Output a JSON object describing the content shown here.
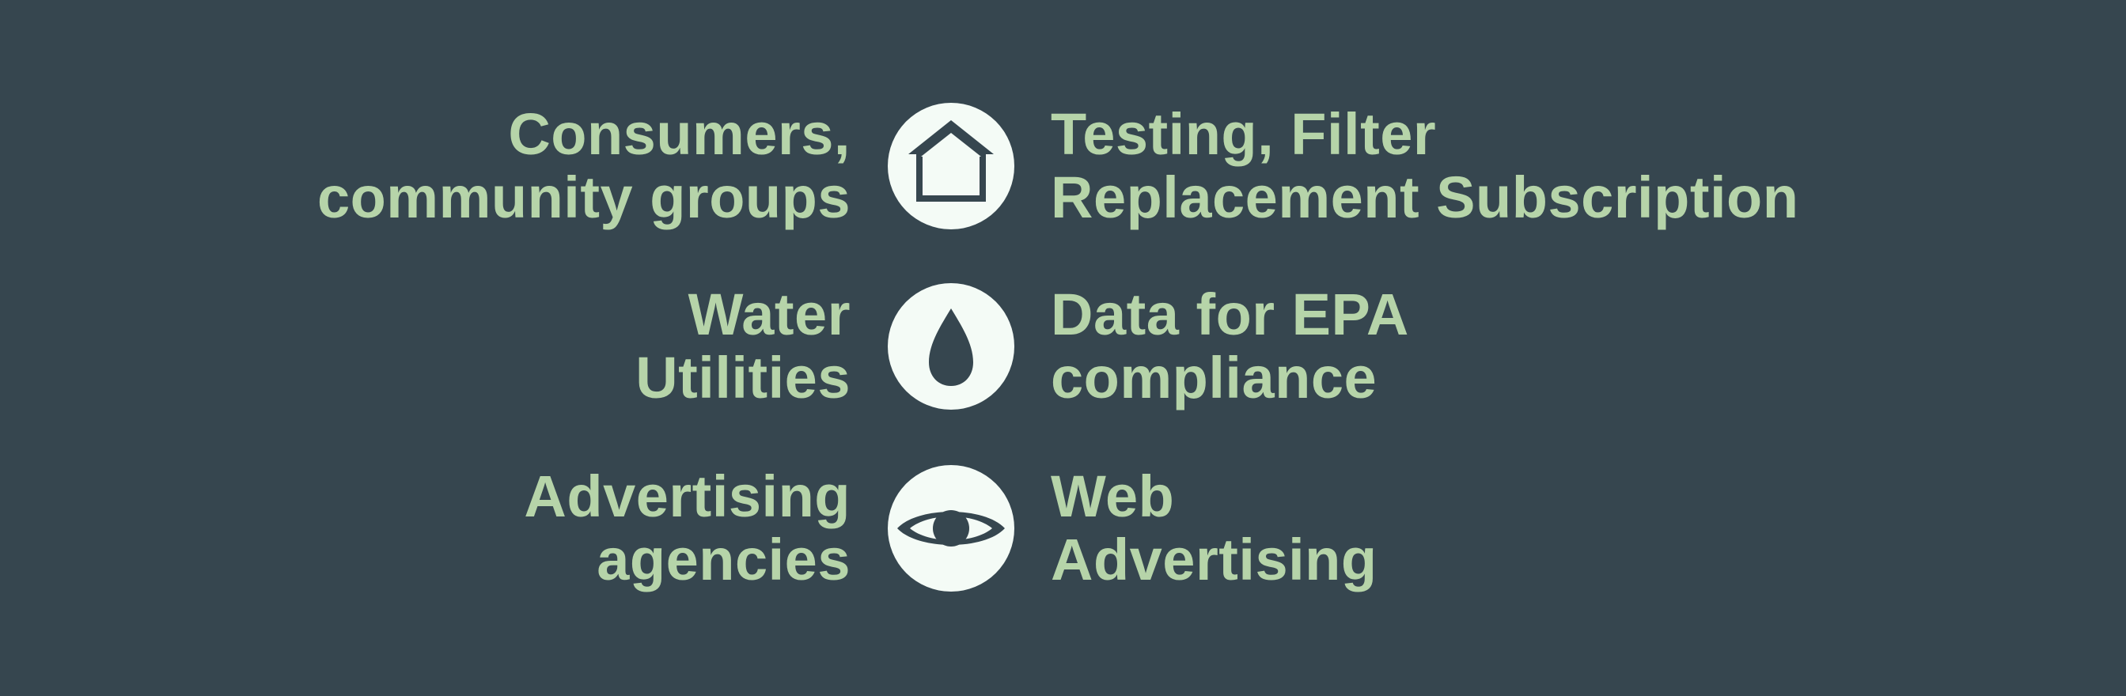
{
  "colors": {
    "background": "#36464f",
    "text": "#b6d4a9",
    "icon_circle": "#f4fbf6",
    "icon_glyph": "#36464f"
  },
  "rows": [
    {
      "left_lines": [
        "Consumers,",
        "community groups"
      ],
      "icon": "house-icon",
      "right_lines": [
        "Testing, Filter",
        "Replacement Subscription"
      ]
    },
    {
      "left_lines": [
        "Water",
        "Utilities"
      ],
      "icon": "water-drop-icon",
      "right_lines": [
        "Data for EPA",
        "compliance"
      ]
    },
    {
      "left_lines": [
        "Advertising",
        "agencies"
      ],
      "icon": "eye-icon",
      "right_lines": [
        "Web",
        "Advertising"
      ]
    }
  ]
}
